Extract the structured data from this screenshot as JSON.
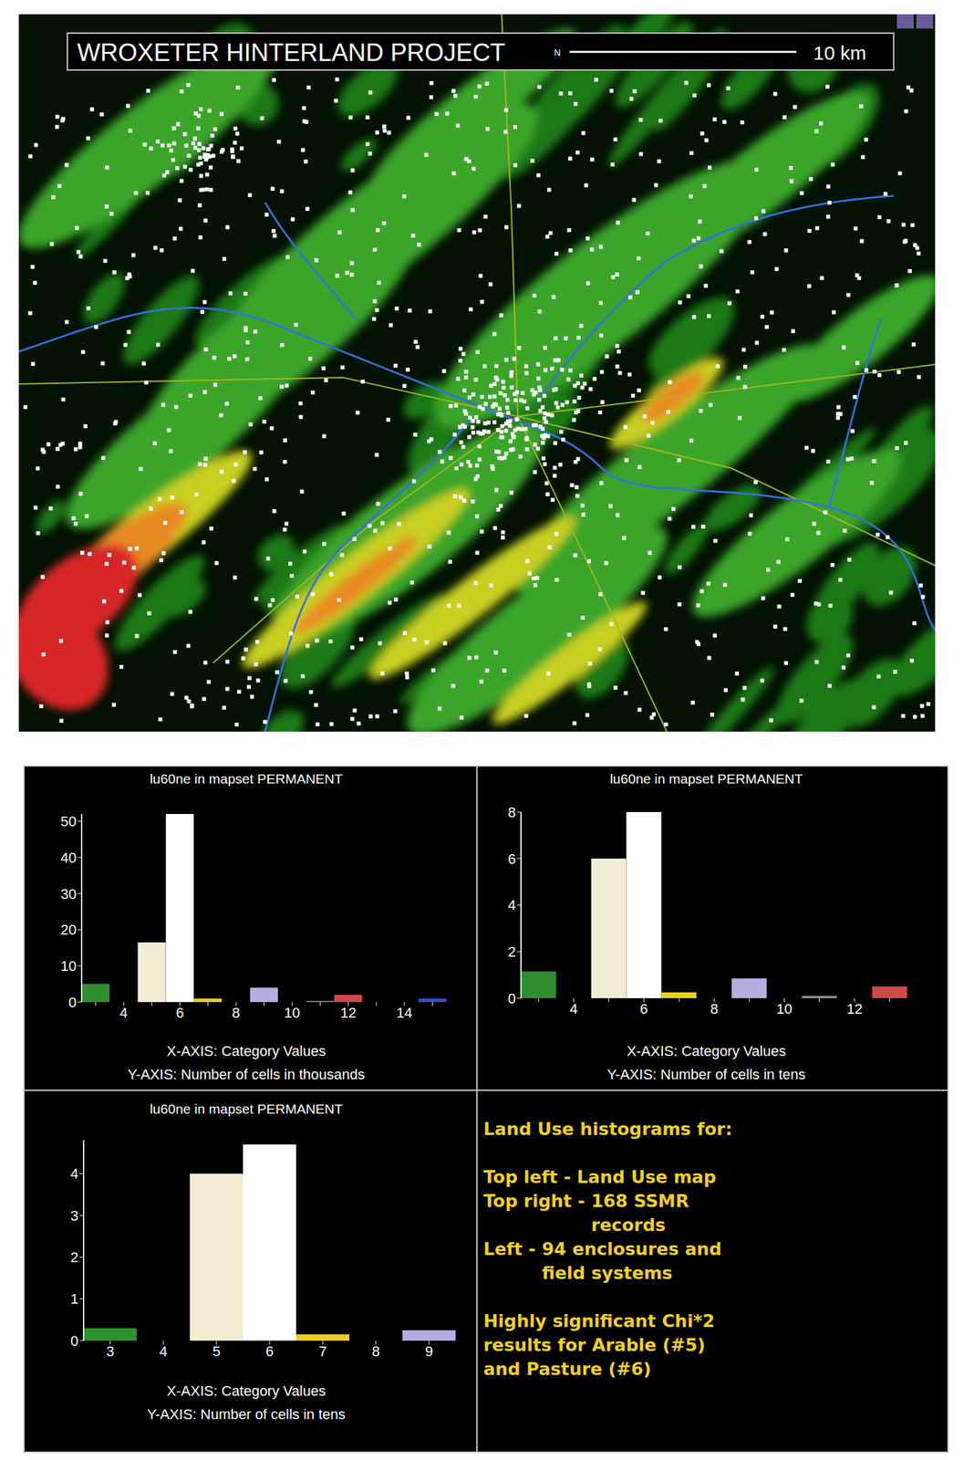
{
  "map": {
    "title": "WROXETER HINTERLAND PROJECT",
    "north": "N",
    "scale": "10 km"
  },
  "chart_data": [
    {
      "type": "bar",
      "title": "lu60ne in mapset PERMANENT",
      "xlabel": "X-AXIS: Category Values",
      "ylabel": "Y-AXIS: Number of cells in thousands",
      "categories": [
        null,
        "4",
        null,
        "6",
        null,
        "8",
        null,
        "10",
        null,
        "12",
        null,
        "14",
        null
      ],
      "values": [
        5,
        0,
        16.5,
        52,
        1,
        0,
        4,
        0,
        0.3,
        2,
        0,
        0,
        1
      ],
      "colors": [
        "#2f8f2f",
        "#000000",
        "#f4ecd2",
        "#ffffff",
        "#e8d020",
        "#000000",
        "#b4aee0",
        "#000000",
        "#9090a0",
        "#d04848",
        "#000000",
        "#000000",
        "#3050d0"
      ],
      "ylim": [
        0,
        52
      ],
      "yticks": [
        0,
        10,
        20,
        30,
        40,
        50
      ]
    },
    {
      "type": "bar",
      "title": "lu60ne in mapset PERMANENT",
      "xlabel": "X-AXIS: Category Values",
      "ylabel": "Y-AXIS: Number of cells in tens",
      "categories": [
        null,
        "4",
        null,
        "6",
        null,
        "8",
        null,
        "10",
        null,
        "12",
        null
      ],
      "values": [
        1.15,
        0,
        6,
        8,
        0.25,
        0,
        0.85,
        0,
        0.1,
        0,
        0.5
      ],
      "colors": [
        "#2f8f2f",
        "#000000",
        "#f4ecd2",
        "#ffffff",
        "#e8d020",
        "#000000",
        "#b4aee0",
        "#000000",
        "#9090a0",
        "#000000",
        "#d04848"
      ],
      "ylim": [
        0,
        8
      ],
      "yticks": [
        0,
        2,
        4,
        6,
        8
      ]
    },
    {
      "type": "bar",
      "title": "lu60ne in mapset PERMANENT",
      "xlabel": "X-AXIS: Category Values",
      "ylabel": "Y-AXIS: Number of cells in tens",
      "categories": [
        "3",
        "4",
        "5",
        "6",
        "7",
        "8",
        "9"
      ],
      "values": [
        0.3,
        0,
        4,
        4.7,
        0.15,
        0,
        0.25
      ],
      "colors": [
        "#2f8f2f",
        "#000000",
        "#f4ecd2",
        "#ffffff",
        "#e8d020",
        "#000000",
        "#b4aee0"
      ],
      "ylim": [
        0,
        4.8
      ],
      "yticks": [
        0,
        1,
        2,
        3,
        4
      ]
    }
  ],
  "panel": {
    "title": "Land Use histograms for:",
    "items": [
      [
        "Top left - Land Use map"
      ],
      [
        "Top right - 168 SSMR",
        "records"
      ],
      [
        "Left - 94 enclosures and",
        "field systems"
      ]
    ],
    "note": [
      "Highly significant Chi*2",
      "results for Arable (#5)",
      "and Pasture (#6)"
    ]
  }
}
